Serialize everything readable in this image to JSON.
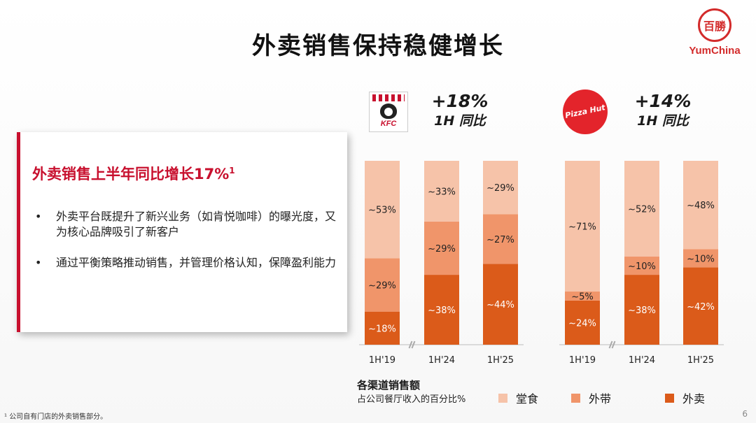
{
  "slide": {
    "title": "外卖销售保持稳健增长",
    "brand_logo": {
      "text": "YumChina",
      "seal_text": "百勝"
    },
    "page_number": "6",
    "footnote": "¹ 公司自有门店的外卖销售部分。"
  },
  "card": {
    "heading": "外卖销售上半年同比增长17%",
    "heading_sup": "1",
    "bullets": [
      {
        "marker": "•",
        "text": "外卖平台既提升了新兴业务（如肯悦咖啡）的曝光度，又为核心品牌吸引了新客户"
      },
      {
        "marker": "•",
        "text": "通过平衡策略推动销售，并管理价格认知，保障盈利能力"
      }
    ]
  },
  "brands": {
    "kfc": {
      "logo_text": "KFC",
      "growth": "+18%",
      "growth_sub": "1H 同比"
    },
    "pizza_hut": {
      "logo_text": "Pizza Hut",
      "growth": "+14%",
      "growth_sub": "1H 同比"
    }
  },
  "legend": {
    "title": "各渠道销售额",
    "subtitle": "占公司餐厅收入的百分比%",
    "items": [
      "堂食",
      "外带",
      "外卖"
    ]
  },
  "colors": {
    "dine_in": "#f6c3a9",
    "takeaway": "#f0956a",
    "delivery": "#db5b1a",
    "accent": "#c8102e"
  },
  "chart_data": [
    {
      "type": "bar",
      "stacked": true,
      "group": "KFC",
      "categories": [
        "1H'19",
        "1H'24",
        "1H'25"
      ],
      "series": [
        {
          "name": "外卖",
          "values": [
            18,
            38,
            44
          ],
          "labels": [
            "~18%",
            "~38%",
            "~44%"
          ]
        },
        {
          "name": "外带",
          "values": [
            29,
            29,
            27
          ],
          "labels": [
            "~29%",
            "~29%",
            "~27%"
          ]
        },
        {
          "name": "堂食",
          "values": [
            53,
            33,
            29
          ],
          "labels": [
            "~53%",
            "~33%",
            "~29%"
          ]
        }
      ],
      "ylim": [
        0,
        100
      ],
      "axis_break_between": [
        "1H'19",
        "1H'24"
      ]
    },
    {
      "type": "bar",
      "stacked": true,
      "group": "Pizza Hut",
      "categories": [
        "1H'19",
        "1H'24",
        "1H'25"
      ],
      "series": [
        {
          "name": "外卖",
          "values": [
            24,
            38,
            42
          ],
          "labels": [
            "~24%",
            "~38%",
            "~42%"
          ]
        },
        {
          "name": "外带",
          "values": [
            5,
            10,
            10
          ],
          "labels": [
            "~5%",
            "~10%",
            "~10%"
          ]
        },
        {
          "name": "堂食",
          "values": [
            71,
            52,
            48
          ],
          "labels": [
            "~71%",
            "~52%",
            "~48%"
          ]
        }
      ],
      "ylim": [
        0,
        100
      ],
      "axis_break_between": [
        "1H'19",
        "1H'24"
      ]
    }
  ]
}
